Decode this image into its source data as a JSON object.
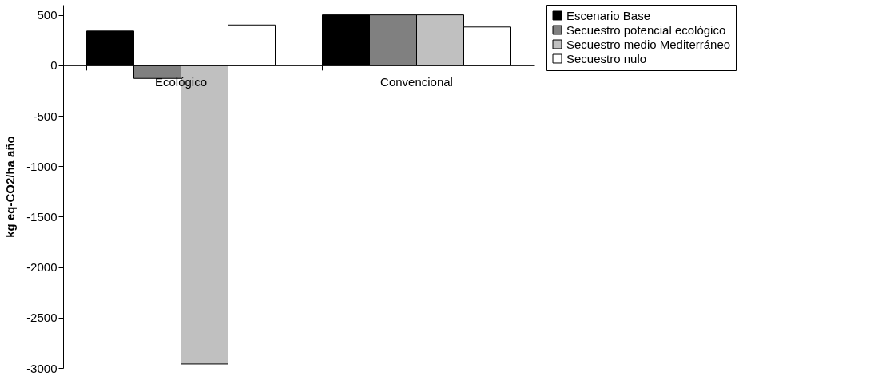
{
  "chart_data": {
    "type": "bar",
    "ylabel": "kg eq-CO2/ha año",
    "categories": [
      "Ecológico",
      "Convencional"
    ],
    "series": [
      {
        "name": "Escenario Base",
        "color": "#000000",
        "values": [
          340,
          500
        ]
      },
      {
        "name": "Secuestro potencial ecológico",
        "color": "#808080",
        "values": [
          -130,
          500
        ]
      },
      {
        "name": "Secuestro medio Mediterráneo",
        "color": "#c0c0c0",
        "values": [
          -2960,
          500
        ]
      },
      {
        "name": "Secuestro nulo",
        "color": "#ffffff",
        "values": [
          400,
          380
        ]
      }
    ],
    "ylim": [
      -3000,
      600
    ],
    "yticks": [
      -3000,
      -2500,
      -2000,
      -1500,
      -1000,
      -500,
      0,
      500
    ],
    "grid": false,
    "legend": "right"
  }
}
